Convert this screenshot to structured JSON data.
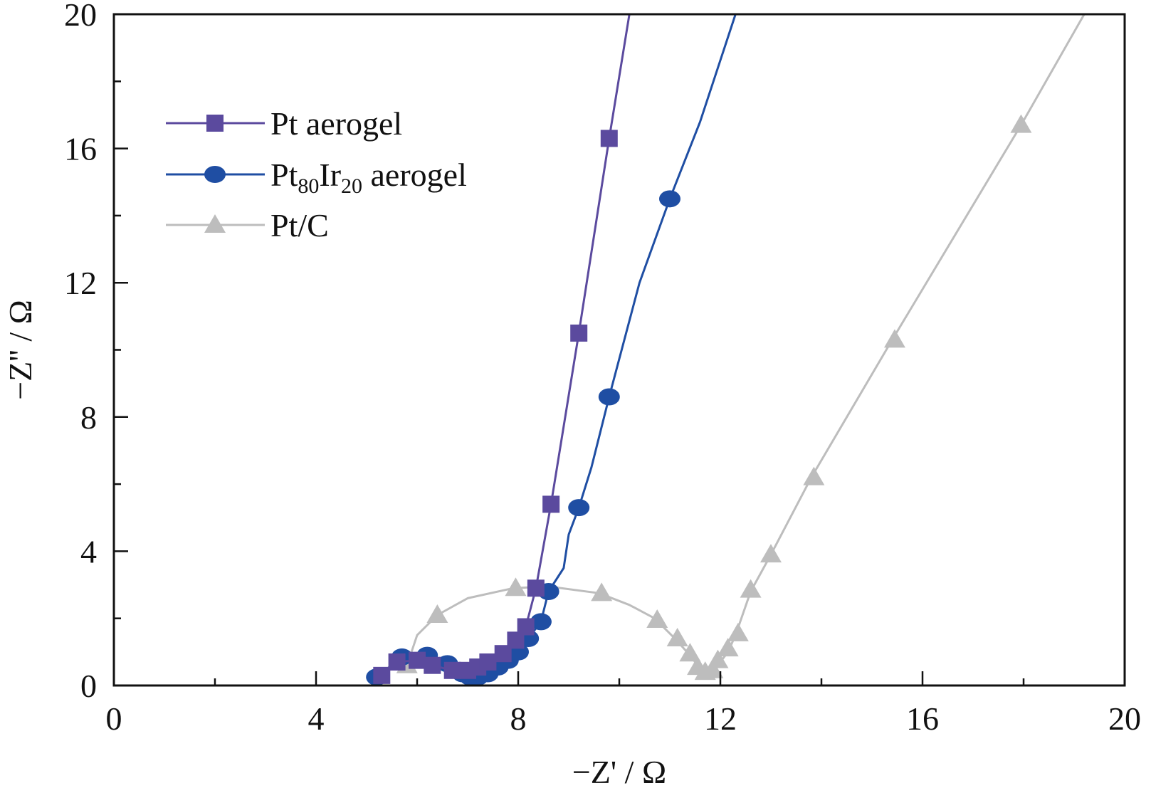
{
  "chart_data": {
    "type": "line",
    "xlabel": "−Z' / Ω",
    "ylabel": "−Z'' / Ω",
    "xlim": [
      0,
      20
    ],
    "ylim": [
      0,
      20
    ],
    "xticks": [
      0,
      4,
      8,
      12,
      16,
      20
    ],
    "yticks": [
      0,
      4,
      8,
      12,
      16,
      20
    ],
    "legend_position": "upper-left",
    "series": [
      {
        "name": "Pt aerogel",
        "label_main": "Pt aerogel",
        "color": "#5b4a9e",
        "marker": "square",
        "points": [
          [
            5.3,
            0.3
          ],
          [
            5.6,
            0.7
          ],
          [
            6.0,
            0.75
          ],
          [
            6.3,
            0.6
          ],
          [
            6.7,
            0.45
          ],
          [
            7.0,
            0.45
          ],
          [
            7.2,
            0.55
          ],
          [
            7.4,
            0.7
          ],
          [
            7.7,
            0.95
          ],
          [
            7.95,
            1.35
          ],
          [
            8.15,
            1.75
          ],
          [
            8.35,
            2.9
          ],
          [
            8.65,
            5.4
          ],
          [
            9.2,
            10.5
          ],
          [
            9.8,
            16.3
          ],
          [
            10.2,
            20
          ]
        ],
        "markers": [
          [
            5.3,
            0.3
          ],
          [
            5.6,
            0.7
          ],
          [
            6.0,
            0.75
          ],
          [
            6.3,
            0.6
          ],
          [
            6.7,
            0.45
          ],
          [
            7.0,
            0.45
          ],
          [
            7.2,
            0.55
          ],
          [
            7.4,
            0.7
          ],
          [
            7.7,
            0.95
          ],
          [
            7.95,
            1.35
          ],
          [
            8.15,
            1.75
          ],
          [
            8.35,
            2.9
          ],
          [
            8.65,
            5.4
          ],
          [
            9.2,
            10.5
          ],
          [
            9.8,
            16.3
          ]
        ]
      },
      {
        "name": "Pt80Ir20 aerogel",
        "label_main": "Pt",
        "label_sub1": "80",
        "label_mid": "Ir",
        "label_sub2": "20",
        "label_tail": " aerogel",
        "color": "#1f4ea3",
        "marker": "circle",
        "points": [
          [
            5.2,
            0.25
          ],
          [
            5.7,
            0.85
          ],
          [
            6.2,
            0.9
          ],
          [
            6.6,
            0.65
          ],
          [
            6.9,
            0.35
          ],
          [
            7.05,
            0.25
          ],
          [
            7.2,
            0.25
          ],
          [
            7.4,
            0.35
          ],
          [
            7.6,
            0.55
          ],
          [
            7.8,
            0.75
          ],
          [
            8.0,
            1.0
          ],
          [
            8.2,
            1.4
          ],
          [
            8.45,
            1.9
          ],
          [
            8.6,
            2.8
          ],
          [
            8.9,
            3.5
          ],
          [
            9.0,
            4.5
          ],
          [
            9.2,
            5.3
          ],
          [
            9.45,
            6.5
          ],
          [
            9.8,
            8.6
          ],
          [
            10.4,
            12.0
          ],
          [
            11.0,
            14.5
          ],
          [
            11.6,
            16.8
          ],
          [
            12.3,
            20
          ]
        ],
        "markers": [
          [
            5.2,
            0.25
          ],
          [
            5.7,
            0.85
          ],
          [
            6.2,
            0.9
          ],
          [
            6.6,
            0.65
          ],
          [
            6.9,
            0.35
          ],
          [
            7.05,
            0.25
          ],
          [
            7.2,
            0.25
          ],
          [
            7.4,
            0.35
          ],
          [
            7.6,
            0.55
          ],
          [
            7.8,
            0.75
          ],
          [
            8.0,
            1.0
          ],
          [
            8.2,
            1.4
          ],
          [
            8.45,
            1.9
          ],
          [
            8.6,
            2.8
          ],
          [
            9.2,
            5.3
          ],
          [
            9.8,
            8.6
          ],
          [
            11.0,
            14.5
          ]
        ]
      },
      {
        "name": "Pt/C",
        "label_main": "Pt/C",
        "color": "#bdbdbd",
        "marker": "triangle",
        "points": [
          [
            5.8,
            0.6
          ],
          [
            6.0,
            1.5
          ],
          [
            6.4,
            2.1
          ],
          [
            7.0,
            2.6
          ],
          [
            7.9,
            2.9
          ],
          [
            8.6,
            2.95
          ],
          [
            9.6,
            2.75
          ],
          [
            10.2,
            2.4
          ],
          [
            10.7,
            2.0
          ],
          [
            11.1,
            1.4
          ],
          [
            11.4,
            0.9
          ],
          [
            11.6,
            0.5
          ],
          [
            11.75,
            0.3
          ],
          [
            11.9,
            0.5
          ],
          [
            12.0,
            0.7
          ],
          [
            12.15,
            1.0
          ],
          [
            12.3,
            1.5
          ],
          [
            12.6,
            2.8
          ],
          [
            13.0,
            3.9
          ],
          [
            13.8,
            6.2
          ],
          [
            15.4,
            10.3
          ],
          [
            17.95,
            16.7
          ],
          [
            19.2,
            20
          ]
        ],
        "markers": [
          [
            5.8,
            0.6
          ],
          [
            6.4,
            2.1
          ],
          [
            7.95,
            2.9
          ],
          [
            9.65,
            2.75
          ],
          [
            10.75,
            1.95
          ],
          [
            11.15,
            1.4
          ],
          [
            11.4,
            0.95
          ],
          [
            11.55,
            0.55
          ],
          [
            11.7,
            0.4
          ],
          [
            11.85,
            0.45
          ],
          [
            11.95,
            0.75
          ],
          [
            12.15,
            1.1
          ],
          [
            12.35,
            1.55
          ],
          [
            12.6,
            2.85
          ],
          [
            13.0,
            3.9
          ],
          [
            13.85,
            6.2
          ],
          [
            15.45,
            10.3
          ],
          [
            17.95,
            16.7
          ]
        ]
      }
    ]
  }
}
